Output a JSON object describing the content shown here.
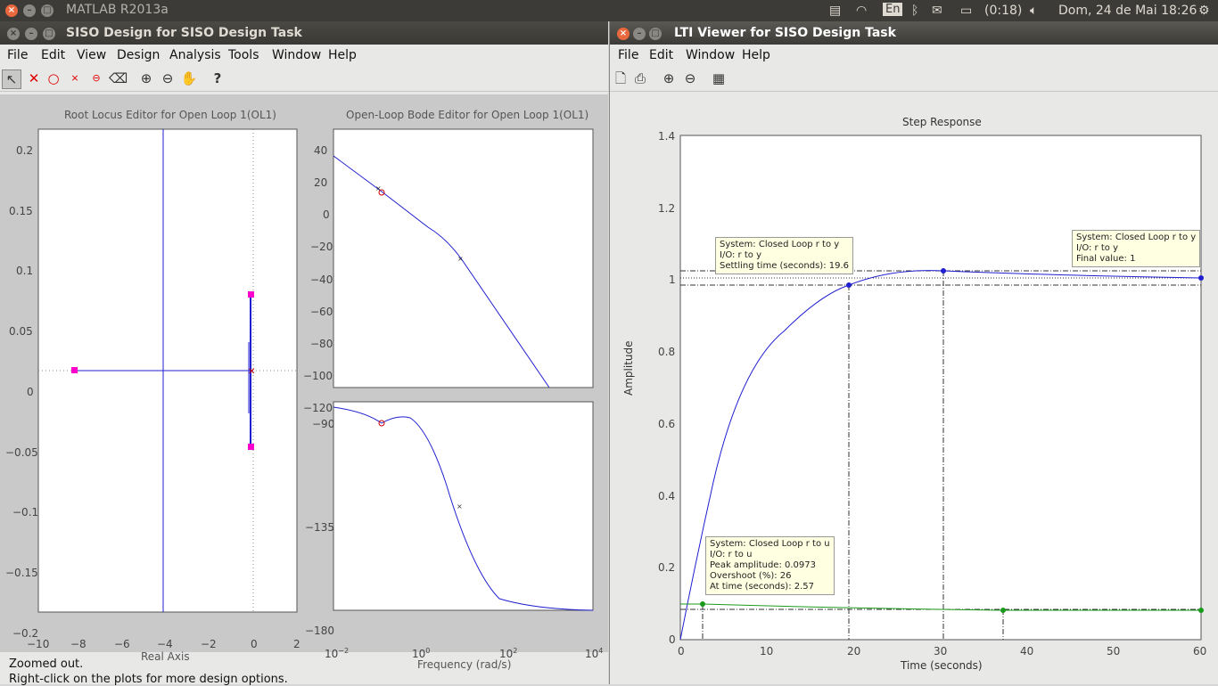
{
  "topbar": {
    "app_title": "MATLAB R2013a",
    "lang": "En",
    "battery": "(0:18)",
    "datetime": "Dom, 24 de Mai 18:26"
  },
  "siso": {
    "title": "SISO Design for SISO Design Task",
    "menu": [
      "File",
      "Edit",
      "View",
      "Design",
      "Analysis",
      "Tools",
      "Window",
      "Help"
    ],
    "rl_title": "Root Locus Editor for Open Loop 1(OL1)",
    "rl_xlabel": "Real Axis",
    "rl_xticks": [
      "−10",
      "−8",
      "−6",
      "−4",
      "−2",
      "0",
      "2"
    ],
    "rl_yticks": [
      "0.2",
      "0.15",
      "0.1",
      "0.05",
      "0",
      "−0.05",
      "−0.1",
      "−0.15",
      "−0.2"
    ],
    "bode_title": "Open-Loop Bode Editor for Open Loop 1(OL1)",
    "bode_mag_ticks": [
      "40",
      "20",
      "0",
      "−20",
      "−40",
      "−60",
      "−80",
      "−100",
      "−120"
    ],
    "bode_phase_ticks": [
      "−90",
      "−135",
      "−180"
    ],
    "bode_xticks": [
      "10",
      "10",
      "10",
      "10"
    ],
    "bode_xexp": [
      "−2",
      "0",
      "2",
      "4"
    ],
    "bode_xlabel": "Frequency (rad/s)",
    "status_line1": "Zoomed out.",
    "status_line2": "Right-click on the plots for more design options."
  },
  "lti": {
    "title": "LTI Viewer for SISO Design Task",
    "menu": [
      "File",
      "Edit",
      "Window",
      "Help"
    ],
    "plot_title": "Step Response",
    "ylabel": "Amplitude",
    "xlabel": "Time (seconds)",
    "yticks": [
      "1.4",
      "1.2",
      "1",
      "0.8",
      "0.6",
      "0.4",
      "0.2",
      "0"
    ],
    "xticks": [
      "0",
      "10",
      "20",
      "30",
      "40",
      "50",
      "60"
    ],
    "tip1": "System: Closed Loop r to y\nI/O: r to y\nSettling time (seconds): 19.6",
    "tip2": "System: Closed Loop r to y\nI/O: r to y\nFinal value: 1",
    "tip3": "System: Closed Loop r to u\nI/O: r to u\nPeak amplitude: 0.0973\nOvershoot (%): 26\nAt time (seconds): 2.57"
  },
  "colors": {
    "blue_curve": "#1f1fd0",
    "green_curve": "#1a9a1a",
    "magenta": "#ff00cc",
    "red_marker": "#cc0000"
  }
}
